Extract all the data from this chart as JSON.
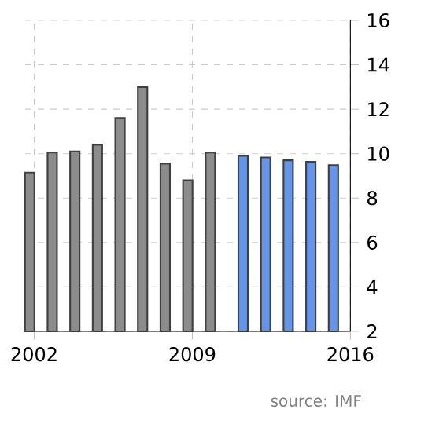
{
  "chart_data": {
    "type": "bar",
    "xlim": [
      2001.6,
      2016
    ],
    "xticks": [
      2002,
      2009,
      2016
    ],
    "ylim": [
      2,
      16
    ],
    "yticks": [
      2,
      4,
      6,
      8,
      10,
      12,
      14,
      16
    ],
    "grid": true,
    "series": [
      {
        "color": "#8c8c8c",
        "x": [
          2001.8,
          2002.8,
          2003.8,
          2004.8,
          2005.8,
          2006.8,
          2007.8,
          2008.8,
          2009.8
        ],
        "values": [
          9.15,
          10.05,
          10.1,
          10.4,
          11.6,
          13.0,
          9.55,
          8.8,
          10.05
        ]
      },
      {
        "color": "#6495ed",
        "x": [
          2011.25,
          2012.25,
          2013.25,
          2014.25,
          2015.25
        ],
        "values": [
          9.9,
          9.83,
          9.7,
          9.63,
          9.48
        ]
      }
    ],
    "annotations": [
      "source: IMF"
    ]
  }
}
